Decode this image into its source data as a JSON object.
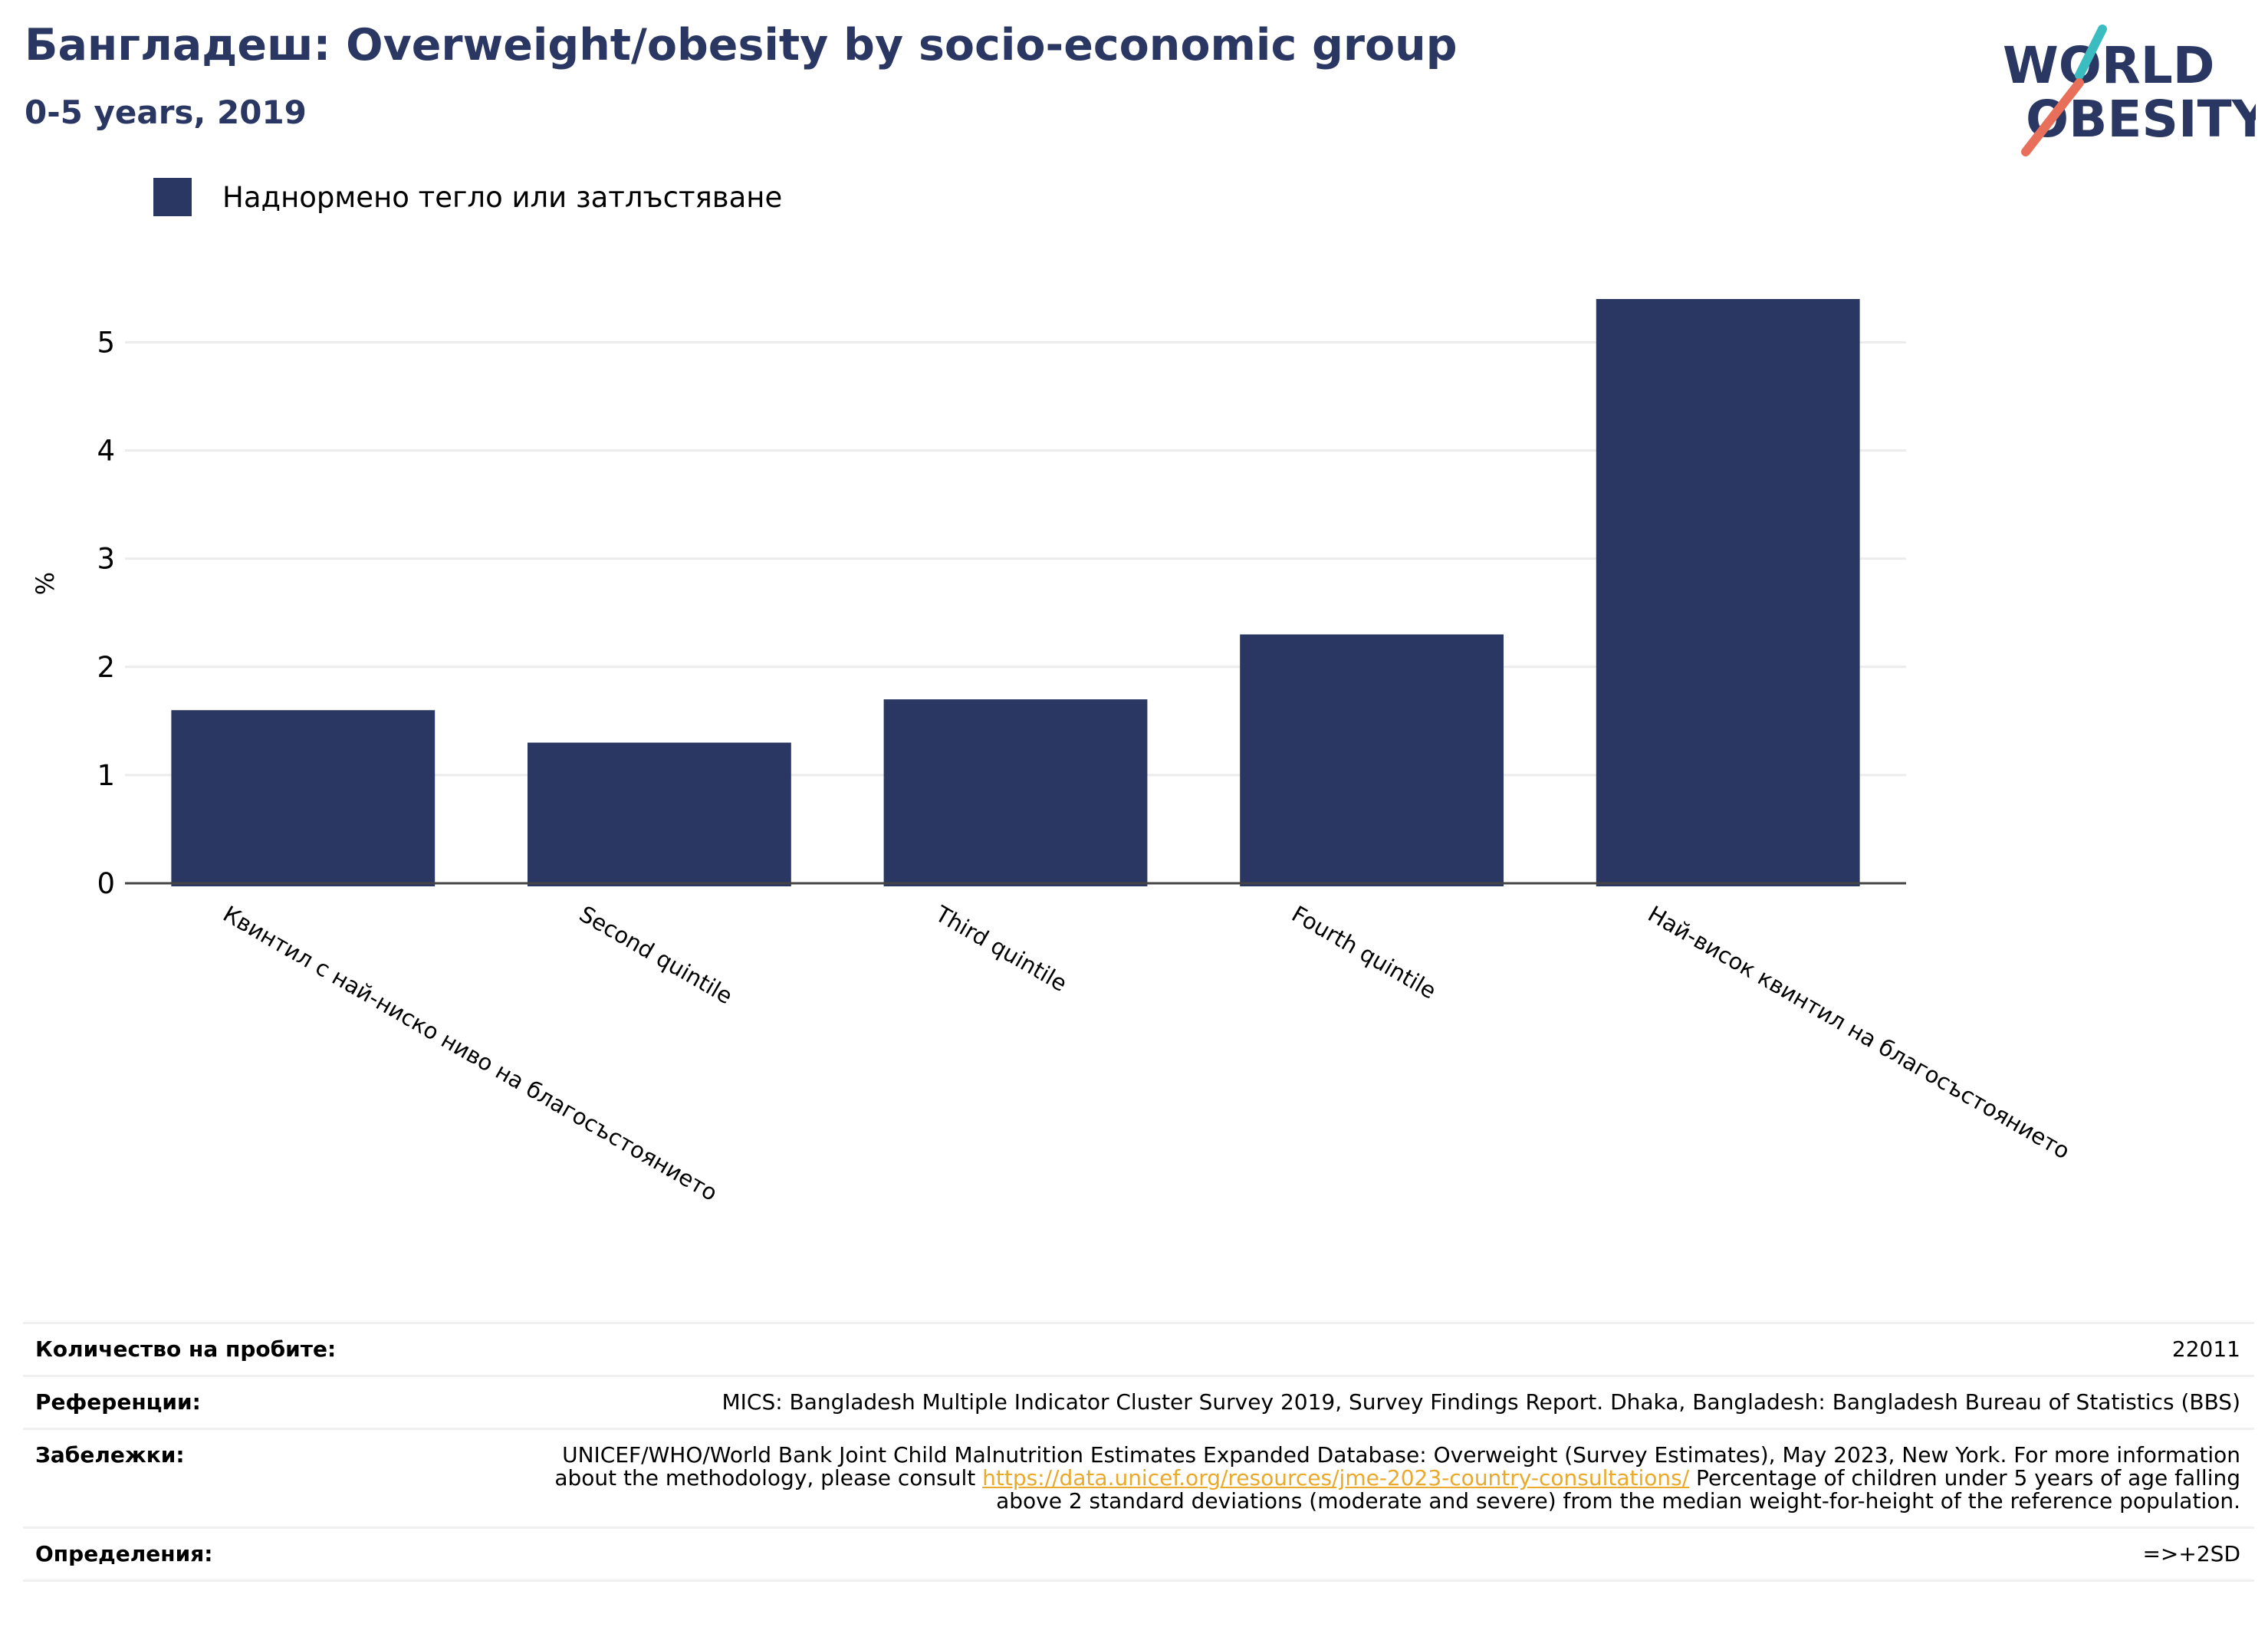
{
  "header": {
    "title": "Бангладеш: Overweight/obesity by socio-economic group",
    "subtitle": "0-5 years, 2019"
  },
  "logo": {
    "line1": "WORLD",
    "line2": "OBESITY"
  },
  "colors": {
    "bar": "#2a3762",
    "title": "#2a3762",
    "link": "#e9a92a",
    "logo_teal": "#3bbcc0",
    "logo_red": "#e8705a"
  },
  "chart_data": {
    "type": "bar",
    "categories": [
      "Квинтил с най-ниско ниво на благосъстоянието",
      "Second quintile",
      "Third quintile",
      "Fourth quintile",
      "Най-висок квинтил на благосъстоянието"
    ],
    "series": [
      {
        "name": "Наднормено тегло или затлъстяване",
        "values": [
          1.6,
          1.3,
          1.7,
          2.3,
          5.4
        ]
      }
    ],
    "ylabel": "%",
    "xlabel": "",
    "ylim": [
      0,
      5.4
    ],
    "yticks": [
      0,
      1,
      2,
      3,
      4,
      5
    ],
    "grid": true,
    "legend": "top-left"
  },
  "footer": {
    "rows": [
      {
        "key": "Количество на пробите:",
        "value": "22011"
      },
      {
        "key": "Референции:",
        "value": "MICS: Bangladesh Multiple Indicator Cluster Survey 2019, Survey Findings Report. Dhaka, Bangladesh: Bangladesh Bureau of Statistics (BBS)"
      },
      {
        "key": "Забележки:",
        "value_before": "UNICEF/WHO/World Bank Joint Child Malnutrition Estimates Expanded Database: Overweight (Survey Estimates), May 2023, New York. For more information about the methodology, please consult ",
        "link": "https://data.unicef.org/resources/jme-2023-country-consultations/",
        "value_after": " Percentage of children under 5 years of age falling above 2 standard deviations (moderate and severe) from the median weight-for-height of the reference population."
      },
      {
        "key": "Определения:",
        "value": "=>+2SD"
      }
    ]
  }
}
